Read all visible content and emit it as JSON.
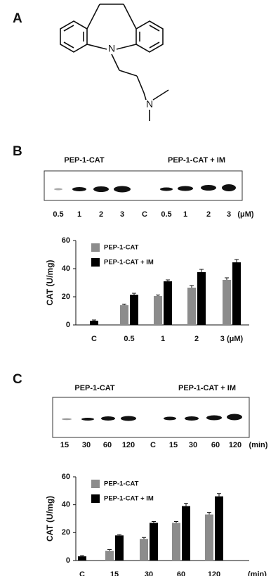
{
  "panel_labels": [
    "A",
    "B",
    "C"
  ],
  "structure": {
    "atoms": [
      "N",
      "N"
    ]
  },
  "blots": [
    {
      "labels": [
        "PEP-1-CAT",
        "PEP-1-CAT + IM"
      ],
      "lanes": [
        "0.5",
        "1",
        "2",
        "3",
        "C",
        "0.5",
        "1",
        "2",
        "3",
        "(μM)"
      ]
    },
    {
      "labels": [
        "PEP-1-CAT",
        "PEP-1-CAT + IM"
      ],
      "lanes": [
        "15",
        "30",
        "60",
        "120",
        "C",
        "15",
        "30",
        "60",
        "120",
        "(min)"
      ]
    }
  ],
  "chart_data": [
    {
      "type": "bar",
      "y_label": "CAT (U/mg)",
      "categories": [
        "C",
        "0.5",
        "1",
        "2",
        "3 (μM)"
      ],
      "series": [
        {
          "name": "PEP-1-CAT",
          "color": "#8c8c8c",
          "values": [
            null,
            14,
            20.5,
            26.5,
            32
          ],
          "errors": [
            null,
            0.8,
            0.8,
            1.5,
            1.5
          ]
        },
        {
          "name": "PEP-1-CAT + IM",
          "color": "#000000",
          "values": [
            3,
            21.5,
            31,
            37.5,
            44.5
          ],
          "errors": [
            0.5,
            1,
            1,
            2,
            2
          ]
        }
      ],
      "ylim": [
        0,
        60
      ],
      "yticks": [
        0,
        20,
        40,
        60
      ],
      "legend": "top-left"
    },
    {
      "type": "bar",
      "y_label": "CAT (U/mg)",
      "x_unit": "(min)",
      "categories": [
        "C",
        "15",
        "30",
        "60",
        "120"
      ],
      "series": [
        {
          "name": "PEP-1-CAT",
          "color": "#8c8c8c",
          "values": [
            null,
            7,
            15.5,
            27,
            33
          ],
          "errors": [
            null,
            0.8,
            1,
            1,
            1.5
          ]
        },
        {
          "name": "PEP-1-CAT + IM",
          "color": "#000000",
          "values": [
            3,
            18,
            27,
            39,
            46
          ],
          "errors": [
            0.5,
            0.5,
            1,
            2,
            2
          ]
        }
      ],
      "ylim": [
        0,
        60
      ],
      "yticks": [
        0,
        20,
        40,
        60
      ],
      "legend": "top-left"
    }
  ]
}
